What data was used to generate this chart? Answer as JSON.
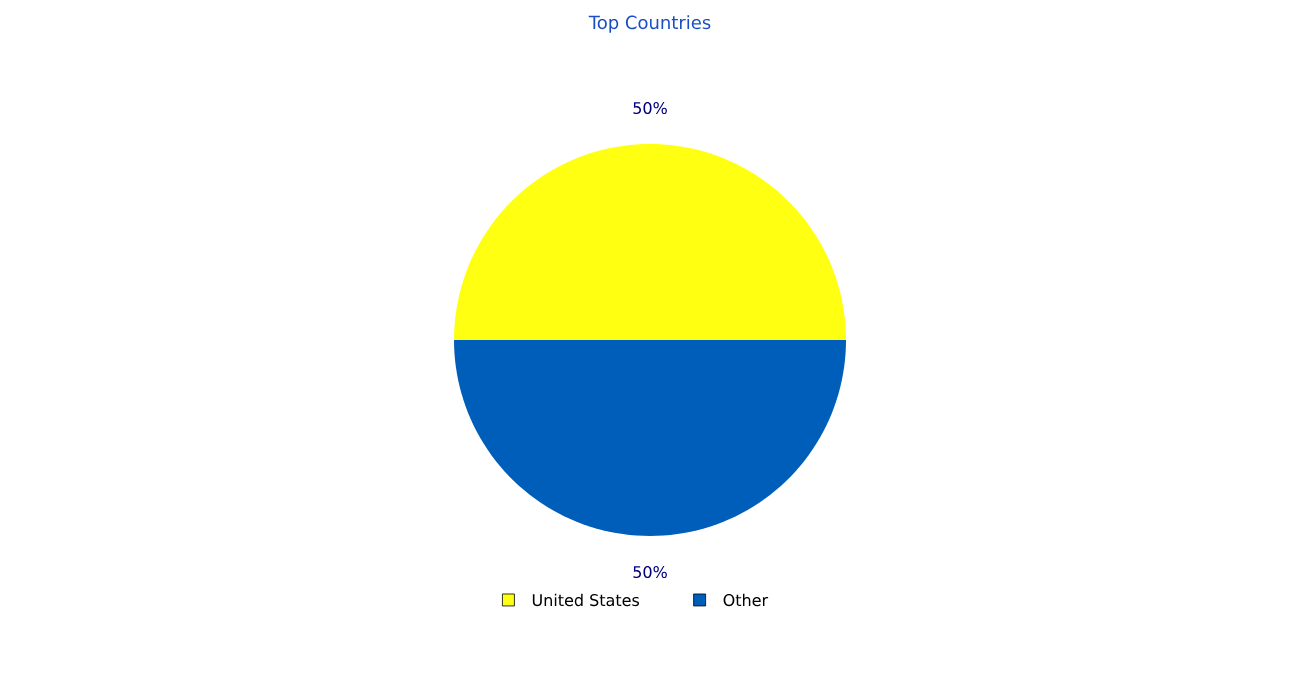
{
  "chart_data": {
    "type": "pie",
    "title": "Top Countries",
    "categories": [
      "United States",
      "Other"
    ],
    "values": [
      50,
      50
    ],
    "colors": [
      "#ffff11",
      "#005ebb"
    ],
    "value_labels": [
      "50%",
      "50%"
    ],
    "legend": "bottom"
  }
}
